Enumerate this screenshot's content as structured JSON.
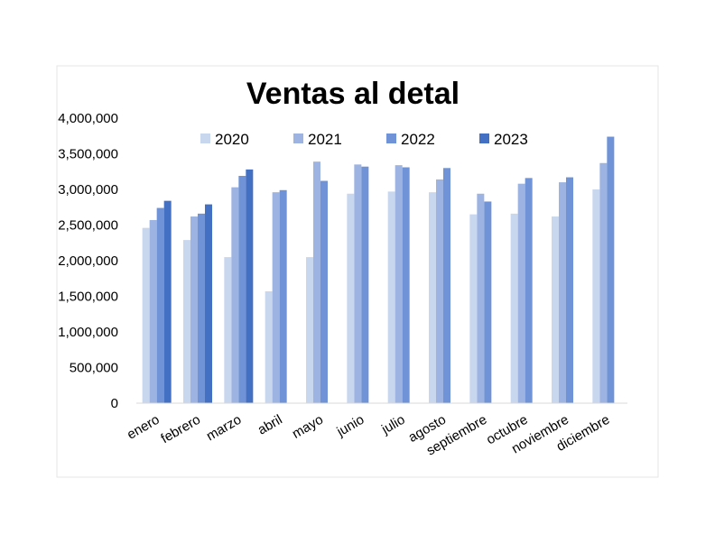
{
  "chart_data": {
    "type": "bar",
    "title": "Ventas al detal",
    "xlabel": "",
    "ylabel": "",
    "ylim": [
      0,
      4000000
    ],
    "yticks": [
      0,
      500000,
      1000000,
      1500000,
      2000000,
      2500000,
      3000000,
      3500000,
      4000000
    ],
    "ytick_labels": [
      "0",
      "500,000",
      "1,000,000",
      "1,500,000",
      "2,000,000",
      "2,500,000",
      "3,000,000",
      "3,500,000",
      "4,000,000"
    ],
    "categories": [
      "enero",
      "febrero",
      "marzo",
      "abril",
      "mayo",
      "junio",
      "julio",
      "agosto",
      "septiembre",
      "octubre",
      "noviembre",
      "diciembre"
    ],
    "legend_position": "top",
    "grid": false,
    "series": [
      {
        "name": "2020",
        "color": "#c9d7ee",
        "values": [
          2460000,
          2290000,
          2050000,
          1570000,
          2050000,
          2940000,
          2970000,
          2960000,
          2650000,
          2660000,
          2620000,
          3000000
        ]
      },
      {
        "name": "2021",
        "color": "#9db4e2",
        "values": [
          2570000,
          2620000,
          3030000,
          2960000,
          3390000,
          3350000,
          3340000,
          3140000,
          2940000,
          3080000,
          3100000,
          3370000
        ]
      },
      {
        "name": "2022",
        "color": "#6f93d6",
        "values": [
          2740000,
          2660000,
          3190000,
          2990000,
          3120000,
          3320000,
          3310000,
          3300000,
          2830000,
          3160000,
          3170000,
          3740000
        ]
      },
      {
        "name": "2023",
        "color": "#4470c4",
        "values": [
          2840000,
          2790000,
          3280000,
          null,
          null,
          null,
          null,
          null,
          null,
          null,
          null,
          null
        ]
      }
    ]
  }
}
